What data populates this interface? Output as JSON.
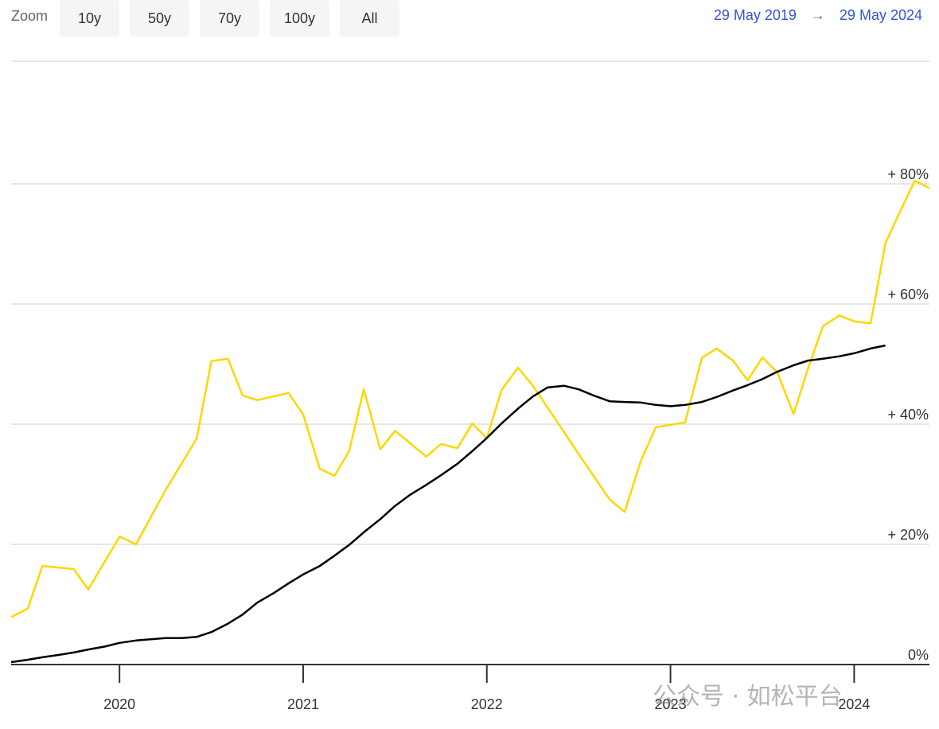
{
  "controls": {
    "zoom_label": "Zoom",
    "buttons": [
      "10y",
      "50y",
      "70y",
      "100y",
      "All"
    ],
    "range_from": "29 May 2019",
    "range_arrow": "→",
    "range_to": "29 May 2024"
  },
  "watermark": "公众号 · 如松平台",
  "chart_data": {
    "type": "line",
    "xlim": [
      2019.41,
      2024.41
    ],
    "xticks": [
      2020,
      2021,
      2022,
      2023,
      2024
    ],
    "ylim": [
      0,
      100
    ],
    "yticks": [
      {
        "value": 0,
        "label": "0%"
      },
      {
        "value": 20,
        "label": "+ 20%"
      },
      {
        "value": 40,
        "label": "+ 40%"
      },
      {
        "value": 60,
        "label": "+ 60%"
      },
      {
        "value": 80,
        "label": "+ 80%"
      }
    ],
    "grid": true,
    "series": [
      {
        "color": "#ffd700",
        "x": [
          2019.41,
          2019.5,
          2019.58,
          2019.75,
          2019.83,
          2020.0,
          2020.09,
          2020.25,
          2020.42,
          2020.5,
          2020.59,
          2020.67,
          2020.75,
          2020.92,
          2021.0,
          2021.09,
          2021.17,
          2021.25,
          2021.33,
          2021.42,
          2021.5,
          2021.67,
          2021.75,
          2021.84,
          2021.92,
          2022.0,
          2022.08,
          2022.17,
          2022.25,
          2022.42,
          2022.5,
          2022.67,
          2022.75,
          2022.84,
          2022.92,
          2023.08,
          2023.17,
          2023.25,
          2023.34,
          2023.42,
          2023.5,
          2023.58,
          2023.67,
          2023.75,
          2023.83,
          2023.92,
          2024.0,
          2024.09,
          2024.17,
          2024.25,
          2024.33,
          2024.41
        ],
        "values": [
          7.9,
          9.3,
          16.4,
          15.9,
          12.5,
          21.3,
          20.0,
          29.0,
          37.6,
          50.5,
          50.9,
          44.8,
          44.0,
          45.2,
          41.6,
          32.6,
          31.4,
          35.5,
          45.8,
          35.8,
          38.9,
          34.6,
          36.7,
          36.0,
          40.1,
          37.7,
          45.7,
          49.4,
          46.4,
          38.7,
          35.0,
          27.4,
          25.4,
          34.0,
          39.5,
          40.3,
          51.0,
          52.6,
          50.6,
          47.3,
          51.1,
          48.7,
          41.7,
          49.4,
          56.3,
          58.1,
          57.1,
          56.8,
          70.1,
          75.4,
          80.5,
          79.3
        ]
      },
      {
        "color": "#000000",
        "x": [
          2019.41,
          2019.5,
          2019.58,
          2019.67,
          2019.75,
          2019.83,
          2019.92,
          2020.0,
          2020.09,
          2020.17,
          2020.25,
          2020.34,
          2020.42,
          2020.5,
          2020.59,
          2020.67,
          2020.75,
          2020.84,
          2020.92,
          2021.0,
          2021.09,
          2021.17,
          2021.25,
          2021.33,
          2021.42,
          2021.5,
          2021.58,
          2021.67,
          2021.75,
          2021.84,
          2021.92,
          2022.0,
          2022.08,
          2022.17,
          2022.25,
          2022.33,
          2022.42,
          2022.5,
          2022.58,
          2022.67,
          2022.75,
          2022.84,
          2022.92,
          2023.0,
          2023.08,
          2023.17,
          2023.25,
          2023.34,
          2023.42,
          2023.5,
          2023.58,
          2023.67,
          2023.75,
          2023.83,
          2023.92,
          2024.0,
          2024.09,
          2024.17
        ],
        "values": [
          0.4,
          0.8,
          1.2,
          1.6,
          2.0,
          2.5,
          3.0,
          3.6,
          4.0,
          4.2,
          4.4,
          4.4,
          4.6,
          5.4,
          6.8,
          8.3,
          10.3,
          11.9,
          13.5,
          15.0,
          16.4,
          18.1,
          19.9,
          22.0,
          24.2,
          26.4,
          28.2,
          29.9,
          31.5,
          33.4,
          35.5,
          37.7,
          40.1,
          42.6,
          44.6,
          46.1,
          46.4,
          45.8,
          44.8,
          43.8,
          43.7,
          43.6,
          43.2,
          43.0,
          43.2,
          43.7,
          44.5,
          45.6,
          46.5,
          47.5,
          48.7,
          49.8,
          50.6,
          50.9,
          51.3,
          51.8,
          52.6,
          53.1
        ]
      }
    ]
  }
}
